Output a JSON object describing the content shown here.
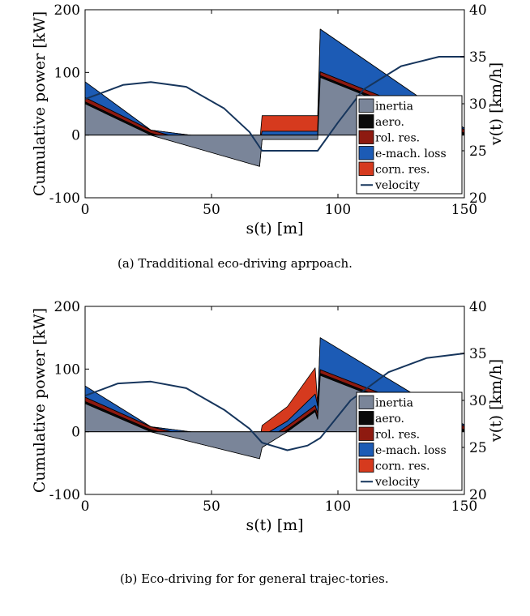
{
  "chart_data": [
    {
      "type": "area",
      "caption": "(a) Tradditional eco-driving aprpoach.",
      "xlabel": "s(t) [m]",
      "ylabel": "Cumulative power [kW]",
      "y2label": "v(t) [km/h]",
      "xlim": [
        0,
        150
      ],
      "ylim": [
        -100,
        200
      ],
      "y2lim": [
        20,
        40
      ],
      "xticks": [
        0,
        50,
        100,
        150
      ],
      "yticks": [
        -100,
        0,
        100,
        200
      ],
      "y2ticks": [
        20,
        25,
        30,
        35,
        40
      ],
      "legend_position": "right",
      "colors": {
        "inertia": "#7a8599",
        "aero": "#0a0a0a",
        "rol_res": "#8e1a10",
        "e_mach_loss": "#1c5bb5",
        "corn_res": "#d63a1e",
        "velocity": "#16355c"
      },
      "series": [
        {
          "name": "inertia",
          "x": [
            0,
            26,
            69,
            70,
            92,
            93,
            150
          ],
          "y": [
            50,
            0,
            -50,
            -7,
            -7,
            92,
            0
          ]
        },
        {
          "name": "aero.",
          "x": [
            0,
            26,
            69,
            70,
            92,
            93,
            150
          ],
          "y": [
            3,
            3,
            3,
            3,
            3,
            3,
            3
          ]
        },
        {
          "name": "rol. res.",
          "x": [
            0,
            26,
            69,
            70,
            92,
            93,
            150
          ],
          "y": [
            7,
            5,
            6,
            4,
            4,
            6,
            6
          ]
        },
        {
          "name": "e-mach. loss",
          "x": [
            0,
            26,
            69,
            70,
            92,
            93,
            150
          ],
          "y": [
            25,
            0,
            27,
            6,
            6,
            68,
            2
          ]
        },
        {
          "name": "corn. res.",
          "x": [
            0,
            26,
            69,
            70,
            92,
            93,
            150
          ],
          "y": [
            0,
            0,
            0,
            25,
            25,
            0,
            0
          ]
        },
        {
          "name": "velocity",
          "x": [
            0,
            15,
            26,
            40,
            55,
            65,
            70,
            92,
            100,
            110,
            125,
            140,
            150
          ],
          "y": [
            30.5,
            32,
            32.3,
            31.8,
            29.5,
            27,
            25,
            25,
            28,
            31.5,
            34,
            35,
            35
          ]
        }
      ]
    },
    {
      "type": "area",
      "caption": "(b) Eco-driving for for general trajec-tories.",
      "xlabel": "s(t) [m]",
      "ylabel": "Cumulative power [kW]",
      "y2label": "v(t) [km/h]",
      "xlim": [
        0,
        150
      ],
      "ylim": [
        -100,
        200
      ],
      "y2lim": [
        20,
        40
      ],
      "xticks": [
        0,
        50,
        100,
        150
      ],
      "yticks": [
        -100,
        0,
        100,
        200
      ],
      "y2ticks": [
        20,
        25,
        30,
        35,
        40
      ],
      "legend_position": "right",
      "colors": {
        "inertia": "#7a8599",
        "aero": "#0a0a0a",
        "rol_res": "#8e1a10",
        "e_mach_loss": "#1c5bb5",
        "corn_res": "#d63a1e",
        "velocity": "#16355c"
      },
      "series": [
        {
          "name": "inertia",
          "x": [
            0,
            26,
            69,
            70,
            80,
            91,
            92,
            93,
            150
          ],
          "y": [
            45,
            0,
            -43,
            -25,
            0,
            32,
            20,
            90,
            0
          ]
        },
        {
          "name": "aero.",
          "x": [
            0,
            26,
            69,
            70,
            80,
            91,
            92,
            93,
            150
          ],
          "y": [
            3,
            3,
            3,
            3,
            3,
            3,
            3,
            3,
            3
          ]
        },
        {
          "name": "rol. res.",
          "x": [
            0,
            26,
            69,
            70,
            80,
            91,
            92,
            93,
            150
          ],
          "y": [
            7,
            5,
            6,
            5,
            6,
            7,
            6,
            6,
            6
          ]
        },
        {
          "name": "e-mach. loss",
          "x": [
            0,
            26,
            69,
            70,
            80,
            91,
            92,
            93,
            150
          ],
          "y": [
            18,
            0,
            20,
            10,
            8,
            18,
            12,
            51,
            2
          ]
        },
        {
          "name": "corn. res.",
          "x": [
            0,
            26,
            69,
            70,
            80,
            91,
            92,
            93,
            150
          ],
          "y": [
            0,
            0,
            0,
            17,
            23,
            42,
            4,
            0,
            0
          ]
        },
        {
          "name": "velocity",
          "x": [
            0,
            13,
            26,
            40,
            55,
            65,
            70,
            80,
            88,
            93,
            105,
            120,
            135,
            150
          ],
          "y": [
            30.5,
            31.8,
            32,
            31.3,
            29,
            27,
            25.5,
            24.7,
            25.2,
            26,
            30,
            33,
            34.5,
            35
          ]
        }
      ]
    }
  ]
}
